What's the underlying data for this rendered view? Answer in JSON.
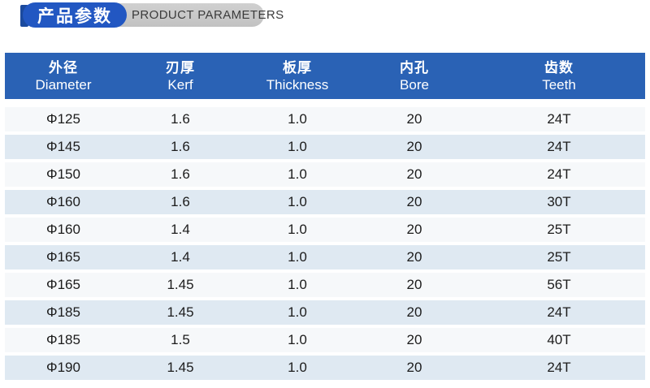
{
  "title": {
    "zh": "产品参数",
    "en": "PRODUCT PARAMETERS",
    "accent_color": "#2257c2",
    "ribbon_color": "#1b4a9e",
    "pill_color": "#c7c7c7"
  },
  "table": {
    "header_bg": "#2a62b5",
    "row_bg": "#f6f8fa",
    "row_alt_bg": "#dfe9f2",
    "column_keys": [
      "diameter",
      "kerf",
      "thickness",
      "bore",
      "teeth"
    ],
    "columns": [
      {
        "zh": "外径",
        "en": "Diameter"
      },
      {
        "zh": "刃厚",
        "en": "Kerf"
      },
      {
        "zh": "板厚",
        "en": "Thickness"
      },
      {
        "zh": "内孔",
        "en": "Bore"
      },
      {
        "zh": "齿数",
        "en": "Teeth"
      }
    ],
    "rows": [
      [
        "Φ125",
        "1.6",
        "1.0",
        "20",
        "24T"
      ],
      [
        "Φ145",
        "1.6",
        "1.0",
        "20",
        "24T"
      ],
      [
        "Φ150",
        "1.6",
        "1.0",
        "20",
        "24T"
      ],
      [
        "Φ160",
        "1.6",
        "1.0",
        "20",
        "30T"
      ],
      [
        "Φ160",
        "1.4",
        "1.0",
        "20",
        "25T"
      ],
      [
        "Φ165",
        "1.4",
        "1.0",
        "20",
        "25T"
      ],
      [
        "Φ165",
        "1.45",
        "1.0",
        "20",
        "56T"
      ],
      [
        "Φ185",
        "1.45",
        "1.0",
        "20",
        "24T"
      ],
      [
        "Φ185",
        "1.5",
        "1.0",
        "20",
        "40T"
      ],
      [
        "Φ190",
        "1.45",
        "1.0",
        "20",
        "24T"
      ]
    ]
  }
}
